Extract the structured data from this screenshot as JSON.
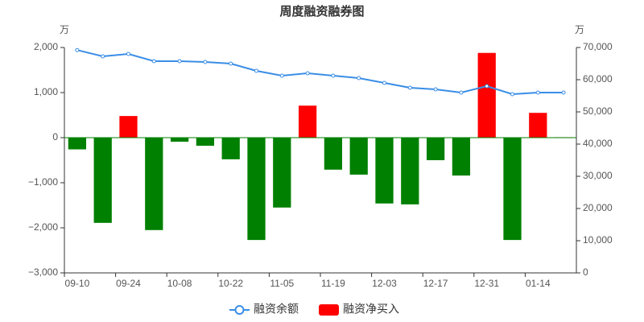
{
  "chart_data": {
    "type": "bar_line",
    "title": "周度融资融券图",
    "y_unit": "万",
    "y2_unit": "万",
    "categories": [
      "09-10",
      null,
      "09-24",
      null,
      "10-08",
      null,
      "10-22",
      null,
      "11-05",
      null,
      "11-19",
      null,
      "12-03",
      null,
      "12-17",
      null,
      "12-31",
      null,
      "01-14",
      null
    ],
    "series": [
      {
        "name": "融资余额",
        "type": "line",
        "axis": "y2",
        "color": "#3a8ee6",
        "values": [
          69200,
          67250,
          68000,
          65750,
          65750,
          65500,
          65000,
          62750,
          61250,
          62000,
          61250,
          60500,
          59000,
          57500,
          57000,
          56000,
          58000,
          55500,
          56000,
          56000
        ]
      },
      {
        "name": "融资净买入",
        "type": "bar",
        "axis": "y",
        "color": "#ff0000",
        "negative_color": "#008000",
        "values": [
          -260,
          -1890,
          480,
          -2050,
          -90,
          -180,
          -480,
          -2270,
          -1550,
          710,
          -710,
          -820,
          -1460,
          -1480,
          -500,
          -840,
          1880,
          -2270,
          550,
          10
        ]
      }
    ],
    "ylim": [
      -3000,
      2000
    ],
    "yticks": [
      {
        "value": -3000,
        "label": "−3,000"
      },
      {
        "value": -2000,
        "label": "−2,000"
      },
      {
        "value": -1000,
        "label": "−1,000"
      },
      0,
      {
        "value": 1000,
        "label": "1,000"
      },
      {
        "value": 2000,
        "label": "2,000"
      }
    ],
    "y2lim": [
      0,
      70000
    ],
    "y2ticks": [
      0,
      {
        "value": 10000,
        "label": "10,000"
      },
      {
        "value": 20000,
        "label": "20,000"
      },
      {
        "value": 30000,
        "label": "30,000"
      },
      {
        "value": 40000,
        "label": "40,000"
      },
      {
        "value": 50000,
        "label": "50,000"
      },
      {
        "value": 60000,
        "label": "60,000"
      },
      {
        "value": 70000,
        "label": "70,000"
      }
    ],
    "legend": "bottom"
  }
}
